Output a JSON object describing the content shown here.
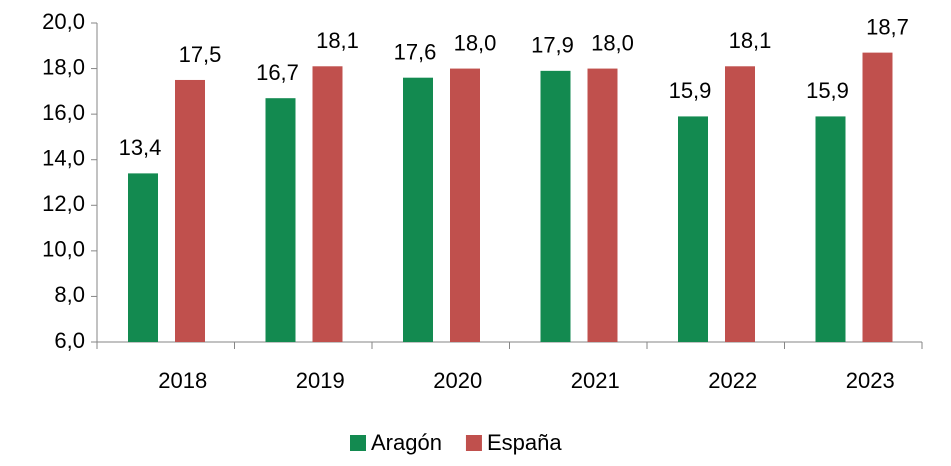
{
  "chart_data": {
    "type": "bar",
    "categories": [
      "2018",
      "2019",
      "2020",
      "2021",
      "2022",
      "2023"
    ],
    "series": [
      {
        "name": "Aragón",
        "color": "#138a50",
        "values": [
          13.4,
          16.7,
          17.6,
          17.9,
          15.9,
          15.9
        ],
        "value_labels": [
          "13,4",
          "16,7",
          "17,6",
          "17,9",
          "15,9",
          "15,9"
        ]
      },
      {
        "name": "España",
        "color": "#c0504d",
        "values": [
          17.5,
          18.1,
          18.0,
          18.0,
          18.1,
          18.7
        ],
        "value_labels": [
          "17,5",
          "18,1",
          "18,0",
          "18,0",
          "18,1",
          "18,7"
        ]
      }
    ],
    "ylim": [
      6,
      20
    ],
    "yticks": [
      {
        "value": 6,
        "label": "6,0"
      },
      {
        "value": 8,
        "label": "8,0"
      },
      {
        "value": 10,
        "label": "10,0"
      },
      {
        "value": 12,
        "label": "12,0"
      },
      {
        "value": 14,
        "label": "14,0"
      },
      {
        "value": 16,
        "label": "16,0"
      },
      {
        "value": 18,
        "label": "18,0"
      },
      {
        "value": 20,
        "label": "20,0"
      }
    ],
    "legend": "bottom"
  }
}
